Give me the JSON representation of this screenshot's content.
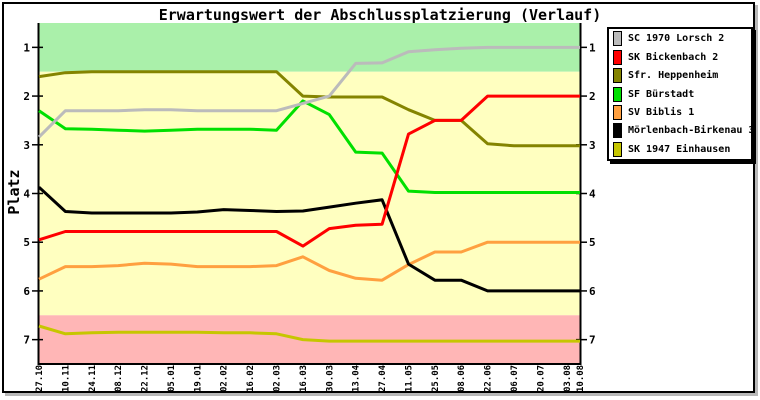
{
  "title": "Erwartungswert der Abschlussplatzierung (Verlauf)",
  "chart_data": {
    "type": "line",
    "title": "Erwartungswert der Abschlussplatzierung (Verlauf)",
    "xlabel": "",
    "ylabel": "Platz",
    "y_ticks": [
      1,
      2,
      3,
      4,
      5,
      6,
      7
    ],
    "ylim": [
      0.5,
      7.5
    ],
    "y_inverted": true,
    "grid": false,
    "legend_position": "top-right",
    "axis_color": "#000000",
    "x_tick_labels": [
      "27.10",
      "10.11",
      "24.11",
      "08.12",
      "22.12",
      "05.01",
      "19.01",
      "02.02",
      "16.02",
      "02.03",
      "16.03",
      "30.03",
      "13.04",
      "27.04",
      "11.05",
      "25.05",
      "08.06",
      "22.06",
      "06.07",
      "20.07",
      "03.08",
      "10.08"
    ],
    "x_days_offset": [
      0,
      14,
      28,
      42,
      56,
      70,
      84,
      98,
      112,
      126,
      140,
      154,
      168,
      182,
      196,
      210,
      224,
      238,
      252,
      266,
      280,
      287
    ],
    "bands": [
      {
        "name": "promotion-zone",
        "from": 0.5,
        "to": 1.5,
        "color": "#AAF0AA"
      },
      {
        "name": "midfield-zone",
        "from": 1.5,
        "to": 6.5,
        "color": "#FFFFC0"
      },
      {
        "name": "relegation-zone",
        "from": 6.5,
        "to": 7.5,
        "color": "#FFB6B6"
      }
    ],
    "series": [
      {
        "name": "SC 1970 Lorsch 2",
        "color": "#BBBBBB",
        "values": [
          2.84,
          2.3,
          2.3,
          2.3,
          2.28,
          2.28,
          2.3,
          2.3,
          2.3,
          2.3,
          2.15,
          2.0,
          1.33,
          1.32,
          1.09,
          1.05,
          1.02,
          1.0,
          1.0,
          1.0,
          1.0,
          1.0
        ]
      },
      {
        "name": "SK Bickenbach 2",
        "color": "#FF0000",
        "values": [
          4.95,
          4.78,
          4.78,
          4.78,
          4.78,
          4.78,
          4.78,
          4.78,
          4.78,
          4.78,
          5.08,
          4.72,
          4.65,
          4.63,
          2.78,
          2.5,
          2.5,
          2.0,
          2.0,
          2.0,
          2.0,
          2.0
        ]
      },
      {
        "name": "Sfr. Heppenheim",
        "color": "#848400",
        "values": [
          1.6,
          1.52,
          1.5,
          1.5,
          1.5,
          1.5,
          1.5,
          1.5,
          1.5,
          1.5,
          2.0,
          2.02,
          2.02,
          2.02,
          2.28,
          2.5,
          2.5,
          2.98,
          3.02,
          3.02,
          3.02,
          3.02
        ]
      },
      {
        "name": "SF Bürstadt",
        "color": "#00E000",
        "values": [
          2.3,
          2.67,
          2.68,
          2.7,
          2.72,
          2.7,
          2.68,
          2.68,
          2.68,
          2.7,
          2.1,
          2.38,
          3.15,
          3.17,
          3.95,
          3.98,
          3.98,
          3.98,
          3.98,
          3.98,
          3.98,
          3.98
        ]
      },
      {
        "name": "SV Biblis 1",
        "color": "#FFA040",
        "values": [
          5.76,
          5.5,
          5.5,
          5.48,
          5.43,
          5.45,
          5.5,
          5.5,
          5.5,
          5.48,
          5.3,
          5.58,
          5.74,
          5.78,
          5.46,
          5.2,
          5.2,
          5.0,
          5.0,
          5.0,
          5.0,
          5.0
        ]
      },
      {
        "name": "Mörlenbach-Birkenau 3",
        "color": "#000000",
        "values": [
          3.87,
          4.37,
          4.4,
          4.4,
          4.4,
          4.4,
          4.38,
          4.33,
          4.35,
          4.37,
          4.36,
          4.28,
          4.2,
          4.13,
          5.45,
          5.78,
          5.78,
          6.0,
          6.0,
          6.0,
          6.0,
          6.0
        ]
      },
      {
        "name": "SK 1947 Einhausen",
        "color": "#C6C600",
        "values": [
          6.72,
          6.88,
          6.86,
          6.85,
          6.85,
          6.85,
          6.85,
          6.86,
          6.86,
          6.88,
          7.0,
          7.03,
          7.03,
          7.03,
          7.03,
          7.03,
          7.03,
          7.03,
          7.03,
          7.03,
          7.03,
          7.03
        ]
      }
    ],
    "draw_order": [
      6,
      4,
      5,
      3,
      2,
      1,
      0
    ]
  }
}
